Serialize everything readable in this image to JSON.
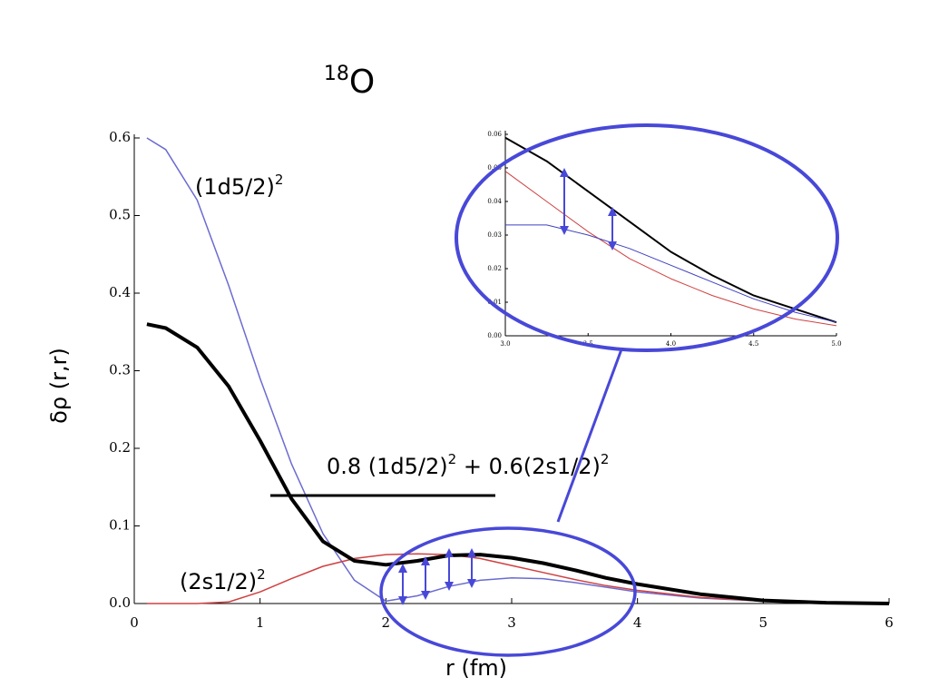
{
  "chart_data": [
    {
      "type": "line",
      "title": {
        "superscript": "18",
        "text": "O"
      },
      "xlabel": "r (fm)",
      "ylabel": "δρ (r,r)",
      "annotations": [
        {
          "text": "(1d5/2)",
          "superscript": "2"
        },
        {
          "text": "(2s1/2)",
          "superscript": "2"
        },
        {
          "parts": [
            "0.8 (1d5/2)",
            "2",
            " + 0.6(2s1/2)",
            "2"
          ]
        }
      ],
      "x": [
        0.1,
        0.25,
        0.5,
        0.75,
        1,
        1.25,
        1.5,
        1.75,
        2,
        2.25,
        2.5,
        2.75,
        3,
        3.25,
        3.5,
        3.75,
        4,
        4.5,
        5,
        5.5,
        6
      ],
      "series": [
        {
          "color": "#6b6bd0",
          "width": 1.5,
          "values": [
            0.6,
            0.585,
            0.52,
            0.41,
            0.29,
            0.18,
            0.09,
            0.03,
            0.003,
            0.01,
            0.022,
            0.03,
            0.033,
            0.032,
            0.027,
            0.021,
            0.015,
            0.007,
            0.003,
            0.001,
            0
          ]
        },
        {
          "color": "#d04040",
          "width": 1.5,
          "values": [
            0,
            0,
            0,
            0.002,
            0.015,
            0.032,
            0.048,
            0.058,
            0.063,
            0.064,
            0.063,
            0.058,
            0.049,
            0.04,
            0.031,
            0.023,
            0.017,
            0.008,
            0.003,
            0.001,
            0
          ]
        },
        {
          "color": "#000000",
          "width": 4,
          "values": [
            0.36,
            0.355,
            0.33,
            0.28,
            0.21,
            0.135,
            0.08,
            0.055,
            0.05,
            0.055,
            0.062,
            0.063,
            0.059,
            0.052,
            0.043,
            0.033,
            0.025,
            0.012,
            0.004,
            0.001,
            0
          ]
        }
      ],
      "xlim": [
        0,
        6
      ],
      "xticks": [
        0,
        1,
        2,
        3,
        4,
        5,
        6
      ],
      "ylim": [
        0,
        0.6
      ],
      "yticks": [
        {
          "value": 0,
          "label": "0.0"
        },
        0.1,
        0.2,
        0.3,
        0.4,
        0.5,
        0.6
      ]
    },
    {
      "type": "line",
      "x": [
        3,
        3.25,
        3.5,
        3.75,
        4,
        4.25,
        4.5,
        4.75,
        5
      ],
      "series": [
        {
          "color": "#000000",
          "width": 2,
          "values": [
            0.059,
            0.052,
            0.043,
            0.034,
            0.025,
            0.018,
            0.012,
            0.008,
            0.004
          ]
        },
        {
          "color": "#d04040",
          "width": 1,
          "values": [
            0.049,
            0.04,
            0.031,
            0.023,
            0.017,
            0.012,
            0.008,
            0.005,
            0.003
          ]
        },
        {
          "color": "#4040c0",
          "width": 1,
          "values": [
            0.033,
            0.033,
            0.03,
            0.026,
            0.021,
            0.016,
            0.011,
            0.007,
            0.004
          ]
        }
      ],
      "xlim": [
        3,
        5
      ],
      "xticks": [
        {
          "value": 3,
          "label": "3.0"
        },
        3.5,
        {
          "value": 4,
          "label": "4.0"
        },
        4.5,
        {
          "value": 5,
          "label": "5.0"
        }
      ],
      "ylim": [
        0,
        0.06
      ],
      "yticks": [
        {
          "value": 0,
          "label": "0.00"
        },
        {
          "value": 0.01,
          "label": "0.01"
        },
        {
          "value": 0.02,
          "label": "0.02"
        },
        {
          "value": 0.03,
          "label": "0.03"
        },
        {
          "value": 0.04,
          "label": "0.04"
        },
        {
          "value": 0.05,
          "label": "0.05"
        },
        0.06
      ]
    }
  ]
}
